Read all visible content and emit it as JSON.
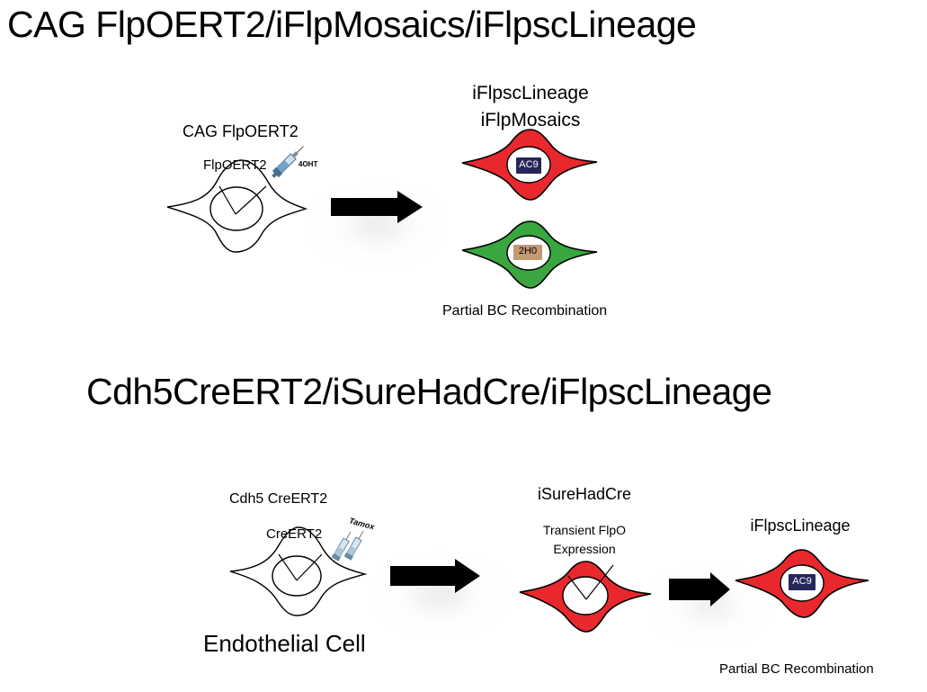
{
  "panel1": {
    "title": "CAG FlpOERT2/iFlpMosaics/iFlpscLineage",
    "source_label": "CAG FlpOERT2",
    "nucleus_label": "FlpOERT2",
    "drug_label": "4OHT",
    "target_label_1": "iFlpscLineage",
    "target_label_2": "iFlpMosaics",
    "barcode_red": "AC9",
    "barcode_green": "2H0",
    "footnote": "Partial BC Recombination"
  },
  "panel2": {
    "title": "Cdh5CreERT2/iSureHadCre/iFlpscLineage",
    "source_label": "Cdh5 CreERT2",
    "nucleus_label": "CreERT2",
    "drug_label": "Tamox",
    "cell_type_label": "Endothelial Cell",
    "middle_label": "iSureHadCre",
    "middle_sub_label_1": "Transient FlpO",
    "middle_sub_label_2": "Expression",
    "target_label": "iFlpscLineage",
    "barcode_red": "AC9",
    "footnote": "Partial BC Recombination"
  },
  "colors": {
    "cell_red": "#e8282d",
    "cell_green": "#3aa63f",
    "badge_navy": "#25265a",
    "badge_tan": "#c49a74",
    "outline": "#000000",
    "arrow": "#000000"
  }
}
